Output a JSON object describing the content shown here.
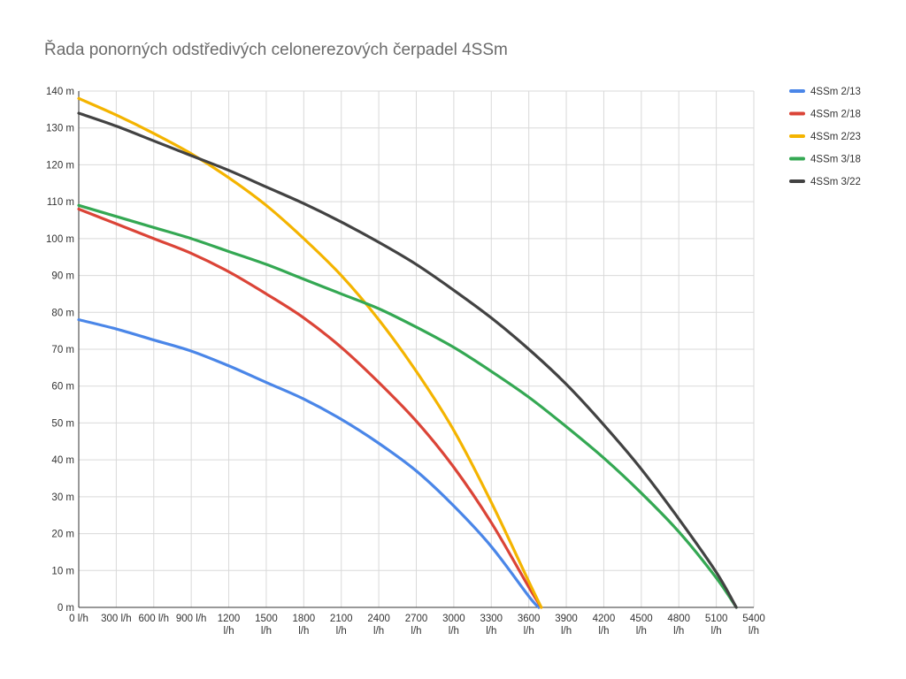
{
  "chart_data": {
    "type": "line",
    "title": "Řada ponorných odstředivých celonerezových čerpadel 4SSm",
    "xlabel": "",
    "ylabel": "",
    "x_ticks": [
      "0 l/h",
      "300 l/h",
      "600 l/h",
      "900 l/h",
      "1200 l/h",
      "1500 l/h",
      "1800 l/h",
      "2100 l/h",
      "2400 l/h",
      "2700 l/h",
      "3000 l/h",
      "3300 l/h",
      "3600 l/h",
      "3900 l/h",
      "4200 l/h",
      "4500 l/h",
      "4800 l/h",
      "5100 l/h",
      "5400 l/h"
    ],
    "y_ticks": [
      "0 m",
      "10 m",
      "20 m",
      "30 m",
      "40 m",
      "50 m",
      "60 m",
      "70 m",
      "80 m",
      "90 m",
      "100 m",
      "110 m",
      "120 m",
      "130 m",
      "140 m"
    ],
    "xlim": [
      0,
      5400
    ],
    "ylim": [
      0,
      140
    ],
    "grid": true,
    "legend_position": "right",
    "series": [
      {
        "name": "4SSm 2/13",
        "color": "#4a86e8",
        "points": [
          [
            0,
            78
          ],
          [
            300,
            75.5
          ],
          [
            600,
            72.5
          ],
          [
            900,
            69.5
          ],
          [
            1200,
            65.5
          ],
          [
            1500,
            61
          ],
          [
            1800,
            56.5
          ],
          [
            2100,
            51
          ],
          [
            2400,
            44.5
          ],
          [
            2700,
            37
          ],
          [
            3000,
            27.5
          ],
          [
            3300,
            16.5
          ],
          [
            3600,
            3
          ],
          [
            3680,
            0
          ]
        ]
      },
      {
        "name": "4SSm 2/18",
        "color": "#db4437",
        "points": [
          [
            0,
            108
          ],
          [
            300,
            104
          ],
          [
            600,
            100
          ],
          [
            900,
            96
          ],
          [
            1200,
            91
          ],
          [
            1500,
            85
          ],
          [
            1800,
            78.5
          ],
          [
            2100,
            70.5
          ],
          [
            2400,
            61
          ],
          [
            2700,
            50.5
          ],
          [
            3000,
            38
          ],
          [
            3300,
            23
          ],
          [
            3600,
            5.5
          ],
          [
            3700,
            0
          ]
        ]
      },
      {
        "name": "4SSm 2/23",
        "color": "#f4b400",
        "points": [
          [
            0,
            138
          ],
          [
            300,
            133.5
          ],
          [
            600,
            128.5
          ],
          [
            900,
            123
          ],
          [
            1200,
            116.5
          ],
          [
            1500,
            109
          ],
          [
            1800,
            100
          ],
          [
            2100,
            90
          ],
          [
            2400,
            78
          ],
          [
            2700,
            64
          ],
          [
            3000,
            48
          ],
          [
            3300,
            28.5
          ],
          [
            3600,
            7
          ],
          [
            3700,
            0
          ]
        ]
      },
      {
        "name": "4SSm 3/18",
        "color": "#34a853",
        "points": [
          [
            0,
            109
          ],
          [
            300,
            106
          ],
          [
            600,
            103
          ],
          [
            900,
            100
          ],
          [
            1200,
            96.5
          ],
          [
            1500,
            93
          ],
          [
            1800,
            89
          ],
          [
            2100,
            85
          ],
          [
            2400,
            81
          ],
          [
            2700,
            76
          ],
          [
            3000,
            70.5
          ],
          [
            3300,
            64
          ],
          [
            3600,
            57
          ],
          [
            3900,
            49
          ],
          [
            4200,
            40.5
          ],
          [
            4500,
            31
          ],
          [
            4800,
            20.5
          ],
          [
            5100,
            8
          ],
          [
            5260,
            0
          ]
        ]
      },
      {
        "name": "4SSm 3/22",
        "color": "#424242",
        "points": [
          [
            0,
            134
          ],
          [
            300,
            130.5
          ],
          [
            600,
            126.5
          ],
          [
            900,
            122.5
          ],
          [
            1200,
            118.5
          ],
          [
            1500,
            114
          ],
          [
            1800,
            109.5
          ],
          [
            2100,
            104.5
          ],
          [
            2400,
            99
          ],
          [
            2700,
            93
          ],
          [
            3000,
            86
          ],
          [
            3300,
            78.5
          ],
          [
            3600,
            70
          ],
          [
            3900,
            60.5
          ],
          [
            4200,
            49.5
          ],
          [
            4500,
            37.5
          ],
          [
            4800,
            24
          ],
          [
            5100,
            9.5
          ],
          [
            5260,
            0
          ]
        ]
      }
    ]
  }
}
